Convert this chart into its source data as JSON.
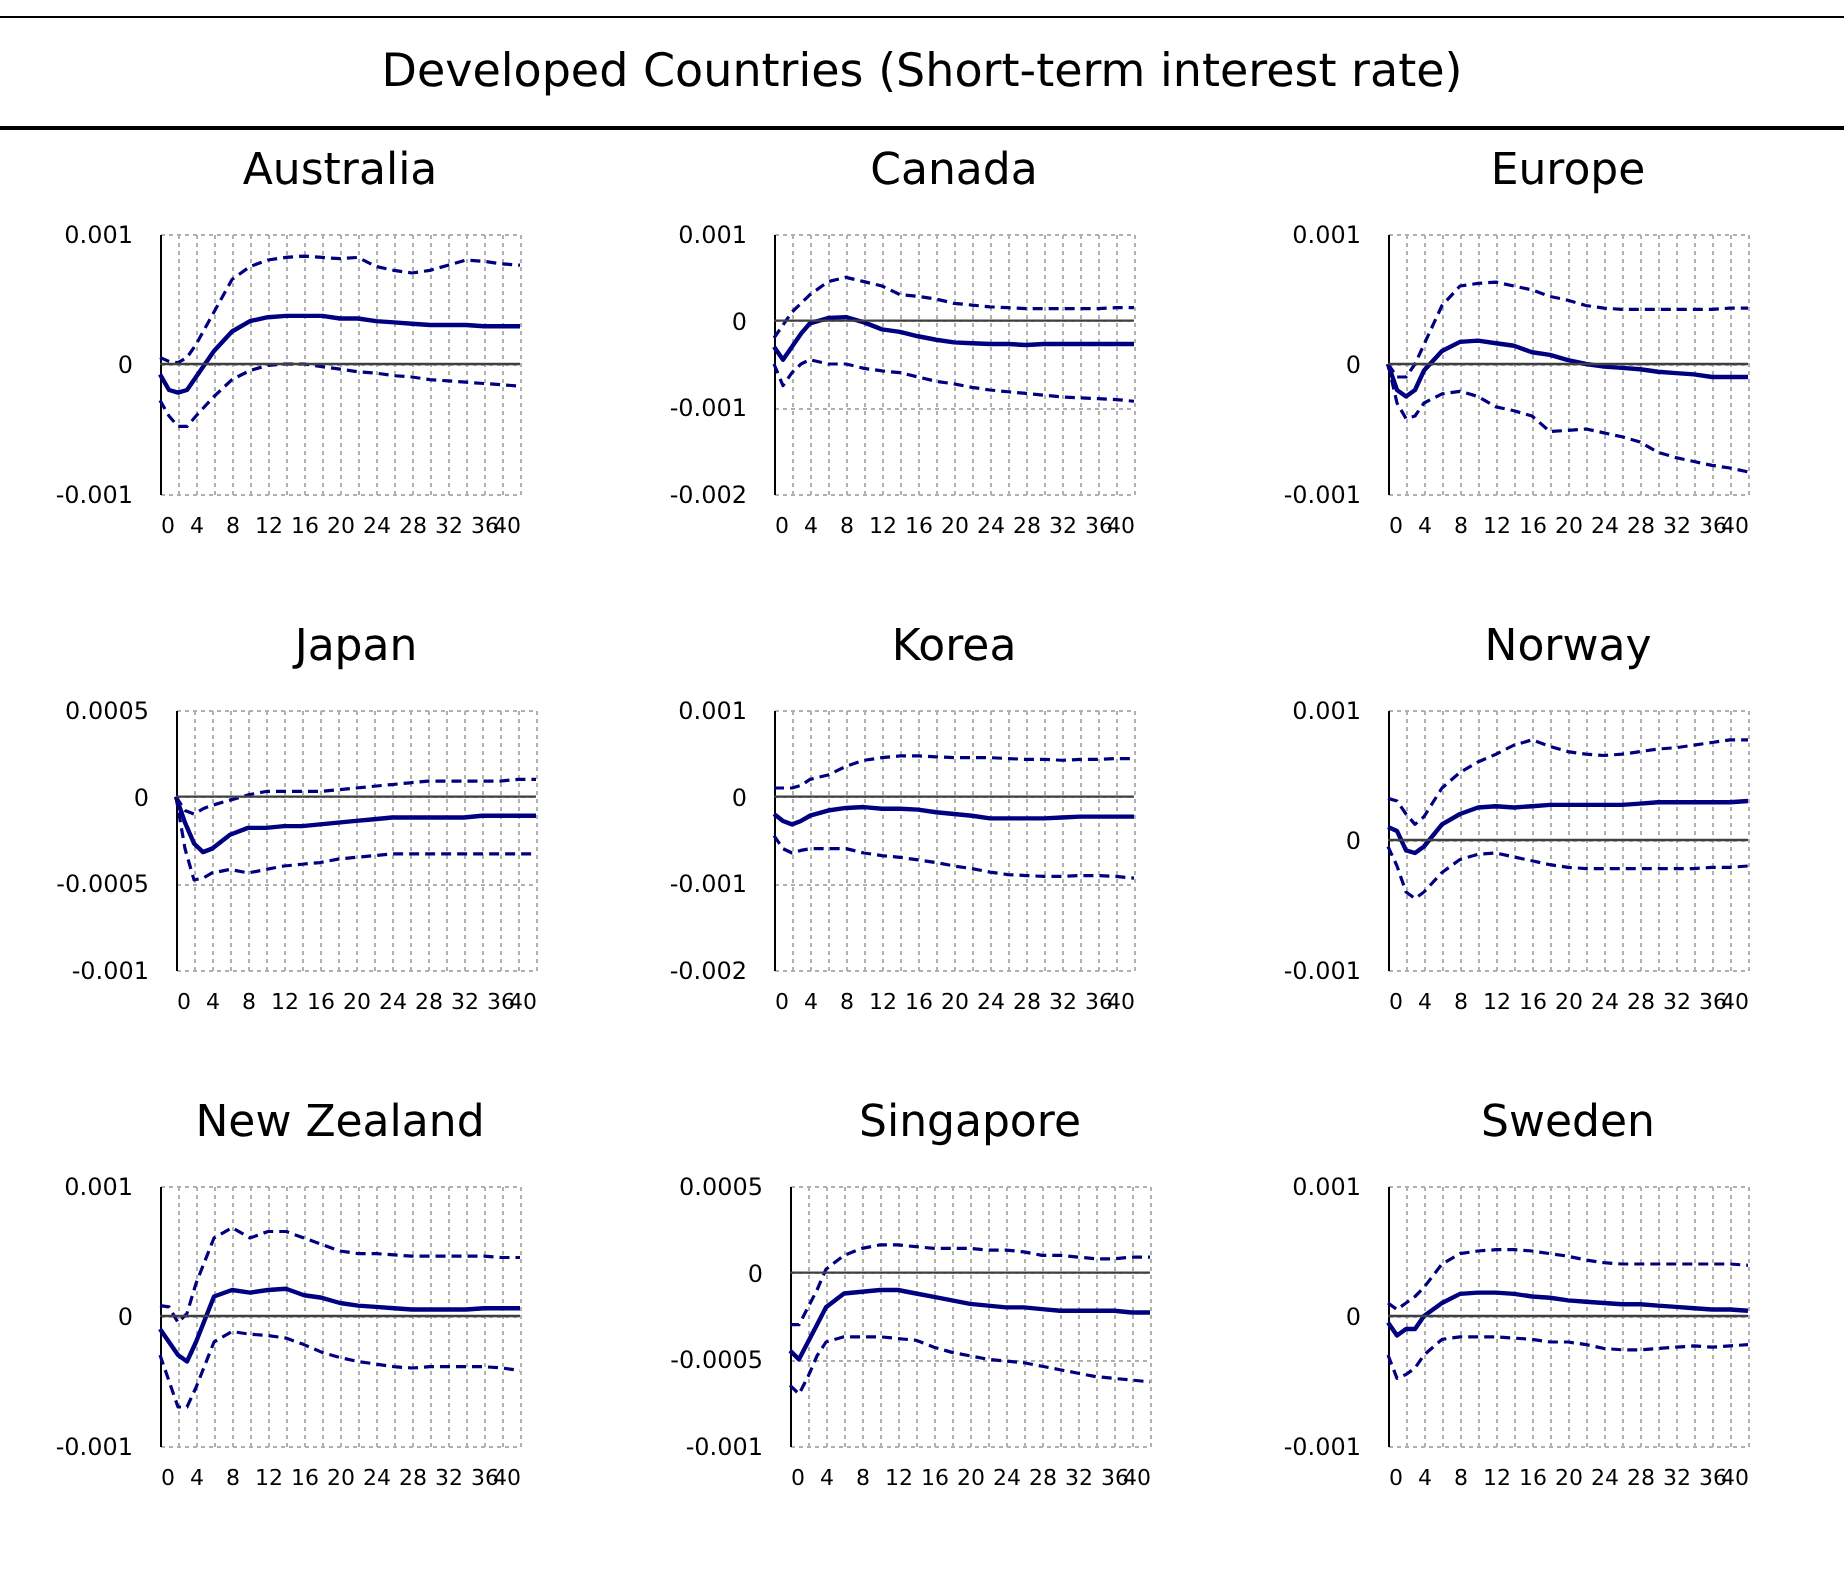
{
  "chart_data": [
    {
      "type": "line",
      "title": "Australia",
      "annotations": [
        "Developed Countries (Short-term interest rate)"
      ],
      "x": [
        0,
        1,
        2,
        3,
        4,
        6,
        8,
        10,
        12,
        14,
        16,
        18,
        20,
        22,
        24,
        26,
        28,
        30,
        32,
        34,
        36,
        38,
        40
      ],
      "xlim": [
        0,
        40
      ],
      "xticks": [
        0,
        {
          "value": 2,
          "label": null
        },
        4,
        {
          "value": 6,
          "label": null
        },
        8,
        {
          "value": 10,
          "label": null
        },
        12,
        {
          "value": 14,
          "label": null
        },
        16,
        {
          "value": 18,
          "label": null
        },
        20,
        {
          "value": 22,
          "label": null
        },
        24,
        {
          "value": 26,
          "label": null
        },
        28,
        {
          "value": 30,
          "label": null
        },
        32,
        {
          "value": 34,
          "label": null
        },
        36,
        {
          "value": 38,
          "label": null
        },
        40
      ],
      "ylim": [
        -0.001,
        0.001
      ],
      "yticks": [
        -0.001,
        0,
        0.001
      ],
      "grid": true,
      "ref_lines": [
        {
          "axis": "y",
          "value": 0
        }
      ],
      "series": [
        {
          "color": "#000080",
          "line_style": "dashed",
          "values": [
            5e-05,
            2e-05,
            1e-05,
            5e-05,
            0.00015,
            0.0004,
            0.00065,
            0.00075,
            0.0008,
            0.00082,
            0.00083,
            0.00082,
            0.00081,
            0.00082,
            0.00075,
            0.00072,
            0.0007,
            0.00072,
            0.00076,
            0.0008,
            0.00079,
            0.00077,
            0.00076
          ]
        },
        {
          "color": "#000080",
          "line_style": "solid",
          "values": [
            -8e-05,
            -0.0002,
            -0.00022,
            -0.0002,
            -0.0001,
            0.0001,
            0.00025,
            0.00033,
            0.00036,
            0.00037,
            0.00037,
            0.00037,
            0.00035,
            0.00035,
            0.00033,
            0.00032,
            0.00031,
            0.0003,
            0.0003,
            0.0003,
            0.00029,
            0.00029,
            0.00029
          ]
        },
        {
          "color": "#000080",
          "line_style": "dashed",
          "values": [
            -0.00028,
            -0.0004,
            -0.00048,
            -0.00048,
            -0.0004,
            -0.00025,
            -0.00012,
            -5e-05,
            -1e-05,
            0,
            0,
            -2e-05,
            -4e-05,
            -6e-05,
            -7e-05,
            -9e-05,
            -0.0001,
            -0.00012,
            -0.00013,
            -0.00014,
            -0.00015,
            -0.00016,
            -0.00017
          ]
        }
      ]
    },
    {
      "type": "line",
      "title": "Canada",
      "x": [
        0,
        1,
        2,
        3,
        4,
        6,
        8,
        10,
        12,
        14,
        16,
        18,
        20,
        22,
        24,
        26,
        28,
        30,
        32,
        34,
        36,
        38,
        40
      ],
      "xlim": [
        0,
        40
      ],
      "xticks": [
        0,
        {
          "value": 2,
          "label": null
        },
        4,
        {
          "value": 6,
          "label": null
        },
        8,
        {
          "value": 10,
          "label": null
        },
        12,
        {
          "value": 14,
          "label": null
        },
        16,
        {
          "value": 18,
          "label": null
        },
        20,
        {
          "value": 22,
          "label": null
        },
        24,
        {
          "value": 26,
          "label": null
        },
        28,
        {
          "value": 30,
          "label": null
        },
        32,
        {
          "value": 34,
          "label": null
        },
        36,
        {
          "value": 38,
          "label": null
        },
        40
      ],
      "ylim": [
        -0.002,
        0.001
      ],
      "yticks": [
        -0.002,
        -0.001,
        0,
        0.001
      ],
      "grid": true,
      "ref_lines": [
        {
          "axis": "y",
          "value": 0
        }
      ],
      "series": [
        {
          "color": "#000080",
          "line_style": "dashed",
          "values": [
            -0.0002,
            -5e-05,
            0.0001,
            0.0002,
            0.0003,
            0.00045,
            0.0005,
            0.00045,
            0.0004,
            0.0003,
            0.00028,
            0.00025,
            0.0002,
            0.00018,
            0.00016,
            0.00015,
            0.00014,
            0.00014,
            0.00014,
            0.00014,
            0.00014,
            0.00015,
            0.00015
          ]
        },
        {
          "color": "#000080",
          "line_style": "solid",
          "values": [
            -0.0003,
            -0.00045,
            -0.0003,
            -0.00015,
            -3e-05,
            3e-05,
            4e-05,
            -2e-05,
            -0.0001,
            -0.00013,
            -0.00018,
            -0.00022,
            -0.00025,
            -0.00026,
            -0.00027,
            -0.00027,
            -0.00028,
            -0.00027,
            -0.00027,
            -0.00027,
            -0.00027,
            -0.00027,
            -0.00027
          ]
        },
        {
          "color": "#000080",
          "line_style": "dashed",
          "values": [
            -0.0005,
            -0.00075,
            -0.0006,
            -0.0005,
            -0.00045,
            -0.0005,
            -0.0005,
            -0.00055,
            -0.00058,
            -0.0006,
            -0.00065,
            -0.0007,
            -0.00073,
            -0.00077,
            -0.0008,
            -0.00082,
            -0.00084,
            -0.00086,
            -0.00088,
            -0.00089,
            -0.0009,
            -0.00091,
            -0.00093
          ]
        }
      ]
    },
    {
      "type": "line",
      "title": "Europe",
      "x": [
        0,
        1,
        2,
        3,
        4,
        6,
        8,
        10,
        12,
        14,
        16,
        18,
        20,
        22,
        24,
        26,
        28,
        30,
        32,
        34,
        36,
        38,
        40
      ],
      "xlim": [
        0,
        40
      ],
      "xticks": [
        0,
        {
          "value": 2,
          "label": null
        },
        4,
        {
          "value": 6,
          "label": null
        },
        8,
        {
          "value": 10,
          "label": null
        },
        12,
        {
          "value": 14,
          "label": null
        },
        16,
        {
          "value": 18,
          "label": null
        },
        20,
        {
          "value": 22,
          "label": null
        },
        24,
        {
          "value": 26,
          "label": null
        },
        28,
        {
          "value": 30,
          "label": null
        },
        32,
        {
          "value": 34,
          "label": null
        },
        36,
        {
          "value": 38,
          "label": null
        },
        40
      ],
      "ylim": [
        -0.001,
        0.001
      ],
      "yticks": [
        -0.001,
        0,
        0.001
      ],
      "grid": true,
      "ref_lines": [
        {
          "axis": "y",
          "value": 0
        }
      ],
      "series": [
        {
          "color": "#000080",
          "line_style": "dashed",
          "values": [
            0,
            -0.0001,
            -0.0001,
            0,
            0.00015,
            0.00045,
            0.0006,
            0.00062,
            0.00063,
            0.0006,
            0.00057,
            0.00052,
            0.00049,
            0.00045,
            0.00043,
            0.00042,
            0.00042,
            0.00042,
            0.00042,
            0.00042,
            0.00042,
            0.00043,
            0.00043
          ]
        },
        {
          "color": "#000080",
          "line_style": "solid",
          "values": [
            0,
            -0.0002,
            -0.00025,
            -0.0002,
            -5e-05,
            0.0001,
            0.00017,
            0.00018,
            0.00016,
            0.00014,
            9e-05,
            7e-05,
            3e-05,
            0,
            -2e-05,
            -3e-05,
            -4e-05,
            -6e-05,
            -7e-05,
            -8e-05,
            -0.0001,
            -0.0001,
            -0.0001
          ]
        },
        {
          "color": "#000080",
          "line_style": "dashed",
          "values": [
            0,
            -0.0003,
            -0.00042,
            -0.0004,
            -0.0003,
            -0.00023,
            -0.00021,
            -0.00025,
            -0.00033,
            -0.00036,
            -0.0004,
            -0.00052,
            -0.00051,
            -0.0005,
            -0.00053,
            -0.00056,
            -0.0006,
            -0.00068,
            -0.00072,
            -0.00075,
            -0.00078,
            -0.0008,
            -0.00083
          ]
        }
      ]
    },
    {
      "type": "line",
      "title": "Japan",
      "x": [
        0,
        1,
        2,
        3,
        4,
        6,
        8,
        10,
        12,
        14,
        16,
        18,
        20,
        22,
        24,
        26,
        28,
        30,
        32,
        34,
        36,
        38,
        40
      ],
      "xlim": [
        0,
        40
      ],
      "xticks": [
        0,
        {
          "value": 2,
          "label": null
        },
        4,
        {
          "value": 6,
          "label": null
        },
        8,
        {
          "value": 10,
          "label": null
        },
        12,
        {
          "value": 14,
          "label": null
        },
        16,
        {
          "value": 18,
          "label": null
        },
        20,
        {
          "value": 22,
          "label": null
        },
        24,
        {
          "value": 26,
          "label": null
        },
        28,
        {
          "value": 30,
          "label": null
        },
        32,
        {
          "value": 34,
          "label": null
        },
        36,
        {
          "value": 38,
          "label": null
        },
        40
      ],
      "ylim": [
        -0.001,
        0.0005
      ],
      "yticks": [
        -0.001,
        -0.0005,
        0,
        0.0005
      ],
      "grid": true,
      "ref_lines": [
        {
          "axis": "y",
          "value": 0
        }
      ],
      "series": [
        {
          "color": "#000080",
          "line_style": "dashed",
          "values": [
            0,
            -8e-05,
            -0.0001,
            -7e-05,
            -5e-05,
            -2e-05,
            1e-05,
            3e-05,
            3e-05,
            3e-05,
            3e-05,
            4e-05,
            5e-05,
            6e-05,
            7e-05,
            8e-05,
            9e-05,
            9e-05,
            9e-05,
            9e-05,
            9e-05,
            0.0001,
            0.0001
          ]
        },
        {
          "color": "#000080",
          "line_style": "solid",
          "values": [
            0,
            -0.00015,
            -0.00027,
            -0.00032,
            -0.0003,
            -0.00022,
            -0.00018,
            -0.00018,
            -0.00017,
            -0.00017,
            -0.00016,
            -0.00015,
            -0.00014,
            -0.00013,
            -0.00012,
            -0.00012,
            -0.00012,
            -0.00012,
            -0.00012,
            -0.00011,
            -0.00011,
            -0.00011,
            -0.00011
          ]
        },
        {
          "color": "#000080",
          "line_style": "dashed",
          "values": [
            0,
            -0.0003,
            -0.00048,
            -0.00047,
            -0.00044,
            -0.00042,
            -0.00044,
            -0.00042,
            -0.0004,
            -0.00039,
            -0.00038,
            -0.00036,
            -0.00035,
            -0.00034,
            -0.00033,
            -0.00033,
            -0.00033,
            -0.00033,
            -0.00033,
            -0.00033,
            -0.00033,
            -0.00033,
            -0.00033
          ]
        }
      ]
    },
    {
      "type": "line",
      "title": "Korea",
      "x": [
        0,
        1,
        2,
        3,
        4,
        6,
        8,
        10,
        12,
        14,
        16,
        18,
        20,
        22,
        24,
        26,
        28,
        30,
        32,
        34,
        36,
        38,
        40
      ],
      "xlim": [
        0,
        40
      ],
      "xticks": [
        0,
        {
          "value": 2,
          "label": null
        },
        4,
        {
          "value": 6,
          "label": null
        },
        8,
        {
          "value": 10,
          "label": null
        },
        12,
        {
          "value": 14,
          "label": null
        },
        16,
        {
          "value": 18,
          "label": null
        },
        20,
        {
          "value": 22,
          "label": null
        },
        24,
        {
          "value": 26,
          "label": null
        },
        28,
        {
          "value": 30,
          "label": null
        },
        32,
        {
          "value": 34,
          "label": null
        },
        36,
        {
          "value": 38,
          "label": null
        },
        40
      ],
      "ylim": [
        -0.002,
        0.001
      ],
      "yticks": [
        -0.002,
        -0.001,
        0,
        0.001
      ],
      "grid": true,
      "ref_lines": [
        {
          "axis": "y",
          "value": 0
        }
      ],
      "series": [
        {
          "color": "#000080",
          "line_style": "dashed",
          "values": [
            0.0001,
            0.0001,
            0.0001,
            0.00013,
            0.0002,
            0.00025,
            0.00035,
            0.00042,
            0.00045,
            0.00047,
            0.00047,
            0.00046,
            0.00045,
            0.00045,
            0.00045,
            0.00044,
            0.00043,
            0.00043,
            0.00042,
            0.00043,
            0.00043,
            0.00044,
            0.00044
          ]
        },
        {
          "color": "#000080",
          "line_style": "solid",
          "values": [
            -0.0002,
            -0.00028,
            -0.00032,
            -0.00028,
            -0.00022,
            -0.00016,
            -0.00013,
            -0.00012,
            -0.00014,
            -0.00014,
            -0.00015,
            -0.00018,
            -0.0002,
            -0.00022,
            -0.00025,
            -0.00025,
            -0.00025,
            -0.00025,
            -0.00024,
            -0.00023,
            -0.00023,
            -0.00023,
            -0.00023
          ]
        },
        {
          "color": "#000080",
          "line_style": "dashed",
          "values": [
            -0.00045,
            -0.0006,
            -0.00065,
            -0.00062,
            -0.0006,
            -0.0006,
            -0.0006,
            -0.00065,
            -0.00068,
            -0.0007,
            -0.00073,
            -0.00076,
            -0.0008,
            -0.00083,
            -0.00087,
            -0.0009,
            -0.00091,
            -0.00092,
            -0.00092,
            -0.00091,
            -0.00091,
            -0.00092,
            -0.00094
          ]
        }
      ]
    },
    {
      "type": "line",
      "title": "Norway",
      "x": [
        0,
        1,
        2,
        3,
        4,
        6,
        8,
        10,
        12,
        14,
        16,
        18,
        20,
        22,
        24,
        26,
        28,
        30,
        32,
        34,
        36,
        38,
        40
      ],
      "xlim": [
        0,
        40
      ],
      "xticks": [
        0,
        {
          "value": 2,
          "label": null
        },
        4,
        {
          "value": 6,
          "label": null
        },
        8,
        {
          "value": 10,
          "label": null
        },
        12,
        {
          "value": 14,
          "label": null
        },
        16,
        {
          "value": 18,
          "label": null
        },
        20,
        {
          "value": 22,
          "label": null
        },
        24,
        {
          "value": 26,
          "label": null
        },
        28,
        {
          "value": 30,
          "label": null
        },
        32,
        {
          "value": 34,
          "label": null
        },
        36,
        {
          "value": 38,
          "label": null
        },
        40
      ],
      "ylim": [
        -0.001,
        0.001
      ],
      "yticks": [
        -0.001,
        0,
        0.001
      ],
      "grid": true,
      "ref_lines": [
        {
          "axis": "y",
          "value": 0
        }
      ],
      "series": [
        {
          "color": "#000080",
          "line_style": "dashed",
          "values": [
            0.00032,
            0.0003,
            0.0002,
            0.00012,
            0.00018,
            0.0004,
            0.00052,
            0.0006,
            0.00066,
            0.00073,
            0.00077,
            0.00072,
            0.00068,
            0.00066,
            0.00065,
            0.00066,
            0.00068,
            0.0007,
            0.00071,
            0.00073,
            0.00075,
            0.00077,
            0.00077
          ]
        },
        {
          "color": "#000080",
          "line_style": "solid",
          "values": [
            0.0001,
            7e-05,
            -8e-05,
            -0.0001,
            -5e-05,
            0.00012,
            0.0002,
            0.00025,
            0.00026,
            0.00025,
            0.00026,
            0.00027,
            0.00027,
            0.00027,
            0.00027,
            0.00027,
            0.00028,
            0.00029,
            0.00029,
            0.00029,
            0.00029,
            0.00029,
            0.0003
          ]
        },
        {
          "color": "#000080",
          "line_style": "dashed",
          "values": [
            -5e-05,
            -0.0002,
            -0.0004,
            -0.00045,
            -0.0004,
            -0.00025,
            -0.00015,
            -0.00011,
            -0.0001,
            -0.00013,
            -0.00016,
            -0.00019,
            -0.00021,
            -0.00022,
            -0.00022,
            -0.00022,
            -0.00022,
            -0.00022,
            -0.00022,
            -0.00022,
            -0.00021,
            -0.00021,
            -0.0002
          ]
        }
      ]
    },
    {
      "type": "line",
      "title": "New Zealand",
      "x": [
        0,
        1,
        2,
        3,
        4,
        6,
        8,
        10,
        12,
        14,
        16,
        18,
        20,
        22,
        24,
        26,
        28,
        30,
        32,
        34,
        36,
        38,
        40
      ],
      "xlim": [
        0,
        40
      ],
      "xticks": [
        0,
        {
          "value": 2,
          "label": null
        },
        4,
        {
          "value": 6,
          "label": null
        },
        8,
        {
          "value": 10,
          "label": null
        },
        12,
        {
          "value": 14,
          "label": null
        },
        16,
        {
          "value": 18,
          "label": null
        },
        20,
        {
          "value": 22,
          "label": null
        },
        24,
        {
          "value": 26,
          "label": null
        },
        28,
        {
          "value": 30,
          "label": null
        },
        32,
        {
          "value": 34,
          "label": null
        },
        36,
        {
          "value": 38,
          "label": null
        },
        40
      ],
      "ylim": [
        -0.001,
        0.001
      ],
      "yticks": [
        -0.001,
        0,
        0.001
      ],
      "grid": true,
      "ref_lines": [
        {
          "axis": "y",
          "value": 0
        }
      ],
      "series": [
        {
          "color": "#000080",
          "line_style": "dashed",
          "values": [
            8e-05,
            7e-05,
            -5e-05,
            2e-05,
            0.00025,
            0.0006,
            0.00068,
            0.0006,
            0.00065,
            0.00065,
            0.0006,
            0.00055,
            0.0005,
            0.00048,
            0.00048,
            0.00047,
            0.00046,
            0.00046,
            0.00046,
            0.00046,
            0.00046,
            0.00045,
            0.00045
          ]
        },
        {
          "color": "#000080",
          "line_style": "solid",
          "values": [
            -0.0001,
            -0.0002,
            -0.0003,
            -0.00035,
            -0.0002,
            0.00015,
            0.0002,
            0.00018,
            0.0002,
            0.00021,
            0.00016,
            0.00014,
            0.0001,
            8e-05,
            7e-05,
            6e-05,
            5e-05,
            5e-05,
            5e-05,
            5e-05,
            6e-05,
            6e-05,
            6e-05
          ]
        },
        {
          "color": "#000080",
          "line_style": "dashed",
          "values": [
            -0.0003,
            -0.0005,
            -0.0007,
            -0.0007,
            -0.00055,
            -0.0002,
            -0.00012,
            -0.00014,
            -0.00015,
            -0.00017,
            -0.00022,
            -0.00028,
            -0.00032,
            -0.00035,
            -0.00037,
            -0.00039,
            -0.0004,
            -0.00039,
            -0.00039,
            -0.00039,
            -0.00039,
            -0.0004,
            -0.00042
          ]
        }
      ]
    },
    {
      "type": "line",
      "title": "Singapore",
      "x": [
        0,
        1,
        2,
        3,
        4,
        6,
        8,
        10,
        12,
        14,
        16,
        18,
        20,
        22,
        24,
        26,
        28,
        30,
        32,
        34,
        36,
        38,
        40
      ],
      "xlim": [
        0,
        40
      ],
      "xticks": [
        0,
        {
          "value": 2,
          "label": null
        },
        4,
        {
          "value": 6,
          "label": null
        },
        8,
        {
          "value": 10,
          "label": null
        },
        12,
        {
          "value": 14,
          "label": null
        },
        16,
        {
          "value": 18,
          "label": null
        },
        20,
        {
          "value": 22,
          "label": null
        },
        24,
        {
          "value": 26,
          "label": null
        },
        28,
        {
          "value": 30,
          "label": null
        },
        32,
        {
          "value": 34,
          "label": null
        },
        36,
        {
          "value": 38,
          "label": null
        },
        40
      ],
      "ylim": [
        -0.001,
        0.0005
      ],
      "yticks": [
        -0.001,
        -0.0005,
        0,
        0.0005
      ],
      "grid": true,
      "ref_lines": [
        {
          "axis": "y",
          "value": 0
        }
      ],
      "series": [
        {
          "color": "#000080",
          "line_style": "dashed",
          "values": [
            -0.0003,
            -0.0003,
            -0.0002,
            -0.0001,
            2e-05,
            0.0001,
            0.00014,
            0.00016,
            0.00016,
            0.00015,
            0.00014,
            0.00014,
            0.00014,
            0.00013,
            0.00013,
            0.00012,
            0.0001,
            0.0001,
            9e-05,
            8e-05,
            8e-05,
            9e-05,
            9e-05
          ]
        },
        {
          "color": "#000080",
          "line_style": "solid",
          "values": [
            -0.00045,
            -0.0005,
            -0.0004,
            -0.0003,
            -0.0002,
            -0.00012,
            -0.00011,
            -0.0001,
            -0.0001,
            -0.00012,
            -0.00014,
            -0.00016,
            -0.00018,
            -0.00019,
            -0.0002,
            -0.0002,
            -0.00021,
            -0.00022,
            -0.00022,
            -0.00022,
            -0.00022,
            -0.00023,
            -0.00023
          ]
        },
        {
          "color": "#000080",
          "line_style": "dashed",
          "values": [
            -0.00065,
            -0.0007,
            -0.0006,
            -0.00048,
            -0.0004,
            -0.00037,
            -0.00037,
            -0.00037,
            -0.00038,
            -0.00039,
            -0.00043,
            -0.00046,
            -0.00048,
            -0.0005,
            -0.00051,
            -0.00052,
            -0.00054,
            -0.00056,
            -0.00058,
            -0.0006,
            -0.00061,
            -0.00062,
            -0.00063
          ]
        }
      ]
    },
    {
      "type": "line",
      "title": "Sweden",
      "x": [
        0,
        1,
        2,
        3,
        4,
        6,
        8,
        10,
        12,
        14,
        16,
        18,
        20,
        22,
        24,
        26,
        28,
        30,
        32,
        34,
        36,
        38,
        40
      ],
      "xlim": [
        0,
        40
      ],
      "xticks": [
        0,
        {
          "value": 2,
          "label": null
        },
        4,
        {
          "value": 6,
          "label": null
        },
        8,
        {
          "value": 10,
          "label": null
        },
        12,
        {
          "value": 14,
          "label": null
        },
        16,
        {
          "value": 18,
          "label": null
        },
        20,
        {
          "value": 22,
          "label": null
        },
        24,
        {
          "value": 26,
          "label": null
        },
        28,
        {
          "value": 30,
          "label": null
        },
        32,
        {
          "value": 34,
          "label": null
        },
        36,
        {
          "value": 38,
          "label": null
        },
        40
      ],
      "ylim": [
        -0.001,
        0.001
      ],
      "yticks": [
        -0.001,
        0,
        0.001
      ],
      "grid": true,
      "ref_lines": [
        {
          "axis": "y",
          "value": 0
        }
      ],
      "series": [
        {
          "color": "#000080",
          "line_style": "dashed",
          "values": [
            0.0001,
            5e-05,
            0.0001,
            0.00015,
            0.00022,
            0.0004,
            0.00048,
            0.0005,
            0.00051,
            0.00051,
            0.0005,
            0.00048,
            0.00046,
            0.00043,
            0.00041,
            0.0004,
            0.0004,
            0.0004,
            0.0004,
            0.0004,
            0.0004,
            0.0004,
            0.00039
          ]
        },
        {
          "color": "#000080",
          "line_style": "solid",
          "values": [
            -5e-05,
            -0.00015,
            -0.0001,
            -0.0001,
            0,
            0.0001,
            0.00017,
            0.00018,
            0.00018,
            0.00017,
            0.00015,
            0.00014,
            0.00012,
            0.00011,
            0.0001,
            9e-05,
            9e-05,
            8e-05,
            7e-05,
            6e-05,
            5e-05,
            5e-05,
            4e-05
          ]
        },
        {
          "color": "#000080",
          "line_style": "dashed",
          "values": [
            -0.0003,
            -0.00048,
            -0.00045,
            -0.0004,
            -0.0003,
            -0.00018,
            -0.00016,
            -0.00016,
            -0.00016,
            -0.00017,
            -0.00018,
            -0.0002,
            -0.0002,
            -0.00022,
            -0.00025,
            -0.00026,
            -0.00026,
            -0.00025,
            -0.00024,
            -0.00023,
            -0.00024,
            -0.00023,
            -0.00022
          ]
        }
      ]
    }
  ]
}
